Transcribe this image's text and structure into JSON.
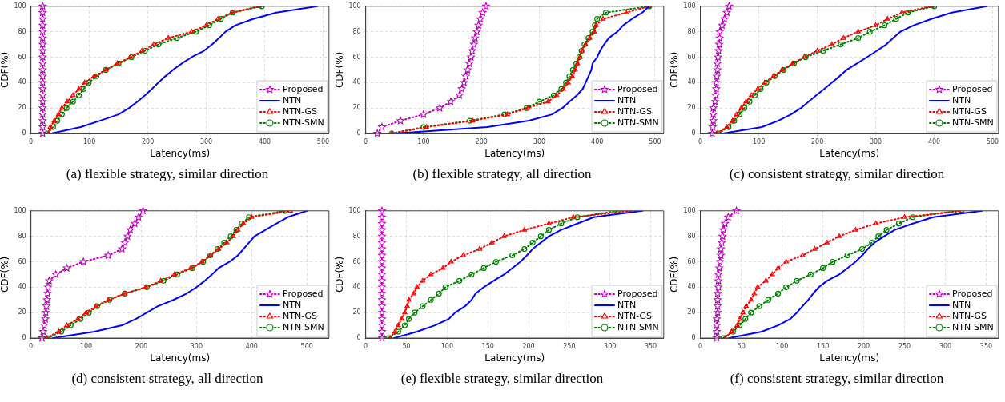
{
  "chart_data": [
    {
      "type": "line",
      "title": "(a) flexible strategy, similar direction",
      "xlabel": "Latency(ms)",
      "ylabel": "CDF(%)",
      "xlim": [
        0,
        510
      ],
      "xticks": [
        0,
        100,
        200,
        300,
        400,
        500
      ],
      "ylim": [
        0,
        100
      ],
      "yticks": [
        0,
        20,
        40,
        60,
        80,
        100
      ],
      "grid": true,
      "legend": "bottom right",
      "series": [
        {
          "name": "Proposed",
          "color": "#bf00bf",
          "marker": "star",
          "line_style": "dotted",
          "x": [
            20,
            20,
            20,
            20,
            20,
            20,
            20,
            20,
            20,
            20,
            20,
            20,
            20,
            20,
            20,
            20,
            20,
            20,
            20,
            20,
            20
          ],
          "values": [
            0,
            5,
            10,
            15,
            20,
            25,
            30,
            35,
            40,
            45,
            50,
            55,
            60,
            65,
            70,
            75,
            80,
            85,
            90,
            95,
            100
          ]
        },
        {
          "name": "NTN",
          "color": "#0000ff",
          "marker": "none",
          "line_style": "solid",
          "x": [
            35,
            85,
            118,
            150,
            168,
            182,
            195,
            207,
            218,
            230,
            243,
            258,
            275,
            296,
            310,
            322,
            333,
            350,
            380,
            420,
            490
          ],
          "values": [
            0,
            5,
            10,
            15,
            20,
            25,
            30,
            35,
            40,
            45,
            50,
            55,
            60,
            65,
            70,
            75,
            80,
            85,
            90,
            95,
            100
          ]
        },
        {
          "name": "NTN-GS",
          "color": "#ff0000",
          "marker": "triangle",
          "line_style": "dotted",
          "x": [
            30,
            33,
            40,
            47,
            53,
            62,
            72,
            82,
            92,
            108,
            128,
            148,
            170,
            190,
            210,
            235,
            275,
            300,
            320,
            345,
            390
          ],
          "values": [
            0,
            5,
            10,
            15,
            20,
            25,
            30,
            35,
            40,
            45,
            50,
            55,
            60,
            65,
            70,
            75,
            80,
            85,
            90,
            95,
            100
          ]
        },
        {
          "name": "NTN-SMN",
          "color": "#008000",
          "marker": "circle",
          "line_style": "dotted",
          "x": [
            28,
            38,
            45,
            53,
            61,
            72,
            82,
            90,
            99,
            112,
            128,
            150,
            172,
            195,
            218,
            250,
            282,
            305,
            325,
            345,
            395
          ],
          "values": [
            0,
            5,
            10,
            15,
            20,
            25,
            30,
            35,
            40,
            45,
            50,
            55,
            60,
            65,
            70,
            75,
            80,
            85,
            90,
            95,
            100
          ]
        }
      ]
    },
    {
      "type": "line",
      "title": "(b) flexible strategy, all direction",
      "xlabel": "Latency(ms)",
      "ylabel": "CDF(%)",
      "xlim": [
        0,
        515
      ],
      "xticks": [
        0,
        100,
        200,
        300,
        400,
        500
      ],
      "ylim": [
        0,
        100
      ],
      "yticks": [
        0,
        20,
        40,
        60,
        80,
        100
      ],
      "grid": true,
      "legend": "bottom right",
      "series": [
        {
          "name": "Proposed",
          "color": "#bf00bf",
          "marker": "star",
          "line_style": "dotted",
          "x": [
            20,
            28,
            60,
            100,
            128,
            147,
            162,
            166,
            170,
            173,
            176,
            179,
            182,
            184,
            187,
            189,
            192,
            195,
            198,
            202,
            208
          ],
          "values": [
            0,
            5,
            10,
            15,
            20,
            25,
            30,
            35,
            40,
            45,
            50,
            55,
            60,
            65,
            70,
            75,
            80,
            85,
            90,
            95,
            100
          ]
        },
        {
          "name": "NTN",
          "color": "#0000ff",
          "marker": "none",
          "line_style": "solid",
          "x": [
            50,
            210,
            282,
            322,
            340,
            352,
            365,
            375,
            380,
            385,
            390,
            392,
            400,
            405,
            412,
            420,
            435,
            445,
            460,
            478,
            490
          ],
          "values": [
            0,
            5,
            10,
            15,
            20,
            25,
            30,
            35,
            40,
            45,
            50,
            55,
            60,
            65,
            70,
            75,
            80,
            85,
            90,
            95,
            100
          ]
        },
        {
          "name": "NTN-GS",
          "color": "#ff0000",
          "marker": "triangle",
          "line_style": "dotted",
          "x": [
            45,
            105,
            185,
            245,
            280,
            315,
            330,
            342,
            350,
            357,
            362,
            366,
            370,
            374,
            380,
            387,
            395,
            398,
            410,
            450,
            490
          ],
          "values": [
            0,
            5,
            10,
            15,
            20,
            25,
            30,
            35,
            40,
            45,
            50,
            55,
            60,
            65,
            70,
            75,
            80,
            85,
            90,
            95,
            100
          ]
        },
        {
          "name": "NTN-SMN",
          "color": "#008000",
          "marker": "circle",
          "line_style": "dotted",
          "x": [
            45,
            100,
            180,
            240,
            278,
            300,
            325,
            338,
            346,
            352,
            358,
            364,
            369,
            373,
            378,
            385,
            392,
            396,
            400,
            415,
            490
          ],
          "values": [
            0,
            5,
            10,
            15,
            20,
            25,
            30,
            35,
            40,
            45,
            50,
            55,
            60,
            65,
            70,
            75,
            80,
            85,
            90,
            95,
            100
          ]
        }
      ]
    },
    {
      "type": "line",
      "title": "(c) consistent strategy, similar direction",
      "xlabel": "Latency(ms)",
      "ylabel": "CDF(%)",
      "xlim": [
        0,
        510
      ],
      "xticks": [
        0,
        100,
        200,
        300,
        400,
        500
      ],
      "ylim": [
        0,
        100
      ],
      "yticks": [
        0,
        20,
        40,
        60,
        80,
        100
      ],
      "grid": true,
      "legend": "bottom right",
      "series": [
        {
          "name": "Proposed",
          "color": "#bf00bf",
          "marker": "star",
          "line_style": "dotted",
          "x": [
            20,
            21,
            22,
            22,
            22,
            25,
            26,
            27,
            27,
            28,
            29,
            29,
            30,
            31,
            32,
            33,
            33,
            37,
            41,
            45,
            49
          ],
          "values": [
            0,
            5,
            10,
            15,
            20,
            25,
            30,
            35,
            40,
            45,
            50,
            55,
            60,
            65,
            70,
            75,
            80,
            85,
            90,
            95,
            100
          ]
        },
        {
          "name": "NTN",
          "color": "#0000ff",
          "marker": "none",
          "line_style": "solid",
          "x": [
            38,
            105,
            133,
            155,
            172,
            185,
            198,
            212,
            225,
            238,
            250,
            268,
            285,
            302,
            318,
            330,
            342,
            365,
            395,
            430,
            490
          ],
          "values": [
            0,
            5,
            10,
            15,
            20,
            25,
            30,
            35,
            40,
            45,
            50,
            55,
            60,
            65,
            70,
            75,
            80,
            85,
            90,
            95,
            100
          ]
        },
        {
          "name": "NTN-GS",
          "color": "#ff0000",
          "marker": "triangle",
          "line_style": "dotted",
          "x": [
            28,
            45,
            55,
            62,
            70,
            78,
            87,
            98,
            110,
            125,
            140,
            158,
            178,
            200,
            225,
            245,
            270,
            300,
            320,
            345,
            395
          ],
          "values": [
            0,
            5,
            10,
            15,
            20,
            25,
            30,
            35,
            40,
            45,
            50,
            55,
            60,
            65,
            70,
            75,
            80,
            85,
            90,
            95,
            100
          ]
        },
        {
          "name": "NTN-SMN",
          "color": "#008000",
          "marker": "circle",
          "line_style": "dotted",
          "x": [
            30,
            48,
            58,
            67,
            75,
            84,
            93,
            103,
            113,
            127,
            142,
            160,
            180,
            210,
            240,
            270,
            290,
            315,
            335,
            355,
            400
          ],
          "values": [
            0,
            5,
            10,
            15,
            20,
            25,
            30,
            35,
            40,
            45,
            50,
            55,
            60,
            65,
            70,
            75,
            80,
            85,
            90,
            95,
            100
          ]
        }
      ]
    },
    {
      "type": "line",
      "title": "(d) consistent strategy, all direction",
      "xlabel": "Latency(ms)",
      "ylabel": "CDF(%)",
      "xlim": [
        0,
        540
      ],
      "xticks": [
        0,
        100,
        200,
        300,
        400,
        500
      ],
      "ylim": [
        0,
        100
      ],
      "yticks": [
        0,
        20,
        40,
        60,
        80,
        100
      ],
      "grid": true,
      "legend": "bottom right",
      "series": [
        {
          "name": "Proposed",
          "color": "#bf00bf",
          "marker": "star",
          "line_style": "dotted",
          "x": [
            20,
            22,
            24,
            26,
            27,
            28,
            29,
            30,
            31,
            33,
            45,
            65,
            95,
            140,
            165,
            170,
            175,
            180,
            188,
            195,
            203
          ],
          "values": [
            0,
            5,
            10,
            15,
            20,
            25,
            30,
            35,
            40,
            45,
            50,
            55,
            60,
            65,
            70,
            75,
            80,
            85,
            90,
            95,
            100
          ]
        },
        {
          "name": "NTN",
          "color": "#0000ff",
          "marker": "none",
          "line_style": "solid",
          "x": [
            40,
            115,
            165,
            190,
            210,
            230,
            258,
            282,
            300,
            315,
            328,
            340,
            360,
            375,
            385,
            395,
            405,
            425,
            445,
            465,
            500
          ],
          "values": [
            0,
            5,
            10,
            15,
            20,
            25,
            30,
            35,
            40,
            45,
            50,
            55,
            60,
            65,
            70,
            75,
            80,
            85,
            90,
            95,
            100
          ]
        },
        {
          "name": "NTN-GS",
          "color": "#ff0000",
          "marker": "triangle",
          "line_style": "dotted",
          "x": [
            28,
            50,
            65,
            85,
            100,
            118,
            140,
            170,
            208,
            235,
            260,
            290,
            310,
            325,
            340,
            355,
            367,
            375,
            385,
            400,
            470
          ],
          "values": [
            0,
            5,
            10,
            15,
            20,
            25,
            30,
            35,
            40,
            45,
            50,
            55,
            60,
            65,
            70,
            75,
            80,
            85,
            90,
            95,
            100
          ]
        },
        {
          "name": "NTN-SMN",
          "color": "#008000",
          "marker": "circle",
          "line_style": "dotted",
          "x": [
            30,
            55,
            72,
            90,
            105,
            120,
            142,
            170,
            210,
            240,
            265,
            292,
            312,
            325,
            338,
            350,
            362,
            372,
            382,
            395,
            460
          ],
          "values": [
            0,
            5,
            10,
            15,
            20,
            25,
            30,
            35,
            40,
            45,
            50,
            55,
            60,
            65,
            70,
            75,
            80,
            85,
            90,
            95,
            100
          ]
        }
      ]
    },
    {
      "type": "line",
      "title": "(e) flexible strategy, similar direction",
      "xlabel": "Latency(ms)",
      "ylabel": "CDF(%)",
      "xlim": [
        0,
        366
      ],
      "xticks": [
        0,
        50,
        100,
        150,
        200,
        250,
        300,
        350
      ],
      "ylim": [
        0,
        100
      ],
      "yticks": [
        0,
        20,
        40,
        60,
        80,
        100
      ],
      "grid": true,
      "legend": "bottom right",
      "series": [
        {
          "name": "Proposed",
          "color": "#bf00bf",
          "marker": "star",
          "line_style": "dotted",
          "x": [
            20,
            20,
            20,
            20,
            20,
            20,
            20,
            20,
            20,
            20,
            20,
            20,
            20,
            20,
            20,
            20,
            20,
            20,
            20,
            20,
            20
          ],
          "values": [
            0,
            5,
            10,
            15,
            20,
            25,
            30,
            35,
            40,
            45,
            50,
            55,
            60,
            65,
            70,
            75,
            80,
            85,
            90,
            95,
            100
          ]
        },
        {
          "name": "NTN",
          "color": "#0000ff",
          "marker": "none",
          "line_style": "solid",
          "x": [
            35,
            63,
            85,
            102,
            110,
            122,
            130,
            135,
            145,
            157,
            170,
            180,
            190,
            198,
            205,
            215,
            225,
            240,
            260,
            280,
            340
          ],
          "values": [
            0,
            5,
            10,
            15,
            20,
            25,
            30,
            35,
            40,
            45,
            50,
            55,
            60,
            65,
            70,
            75,
            80,
            85,
            90,
            95,
            100
          ]
        },
        {
          "name": "NTN-GS",
          "color": "#ff0000",
          "marker": "triangle",
          "line_style": "dotted",
          "x": [
            30,
            36,
            40,
            44,
            48,
            51,
            53,
            59,
            63,
            70,
            80,
            95,
            105,
            120,
            140,
            155,
            170,
            195,
            225,
            255,
            325
          ],
          "values": [
            0,
            5,
            10,
            15,
            20,
            25,
            30,
            35,
            40,
            45,
            50,
            55,
            60,
            65,
            70,
            75,
            80,
            85,
            90,
            95,
            100
          ]
        },
        {
          "name": "NTN-SMN",
          "color": "#008000",
          "marker": "circle",
          "line_style": "dotted",
          "x": [
            28,
            40,
            48,
            53,
            60,
            70,
            80,
            90,
            98,
            115,
            130,
            145,
            160,
            180,
            195,
            205,
            215,
            225,
            240,
            260,
            310
          ],
          "values": [
            0,
            5,
            10,
            15,
            20,
            25,
            30,
            35,
            40,
            45,
            50,
            55,
            60,
            65,
            70,
            75,
            80,
            85,
            90,
            95,
            100
          ]
        }
      ]
    },
    {
      "type": "line",
      "title": "(f) consistent strategy, similar direction",
      "xlabel": "Latency(ms)",
      "ylabel": "CDF(%)",
      "xlim": [
        0,
        365
      ],
      "xticks": [
        0,
        50,
        100,
        150,
        200,
        250,
        300,
        350
      ],
      "ylim": [
        0,
        100
      ],
      "yticks": [
        0,
        20,
        40,
        60,
        80,
        100
      ],
      "grid": true,
      "legend": "bottom right",
      "series": [
        {
          "name": "Proposed",
          "color": "#bf00bf",
          "marker": "star",
          "line_style": "dotted",
          "x": [
            20,
            20,
            20,
            20,
            21,
            21,
            21,
            21,
            22,
            22,
            22,
            23,
            24,
            25,
            25,
            26,
            27,
            28,
            30,
            34,
            44
          ],
          "values": [
            0,
            5,
            10,
            15,
            20,
            25,
            30,
            35,
            40,
            45,
            50,
            55,
            60,
            65,
            70,
            75,
            80,
            85,
            90,
            95,
            100
          ]
        },
        {
          "name": "NTN",
          "color": "#0000ff",
          "marker": "none",
          "line_style": "solid",
          "x": [
            35,
            75,
            95,
            110,
            118,
            125,
            132,
            138,
            145,
            155,
            170,
            180,
            190,
            198,
            205,
            213,
            225,
            238,
            260,
            285,
            345
          ],
          "values": [
            0,
            5,
            10,
            15,
            20,
            25,
            30,
            35,
            40,
            45,
            50,
            55,
            60,
            65,
            70,
            75,
            80,
            85,
            90,
            95,
            100
          ]
        },
        {
          "name": "NTN-GS",
          "color": "#ff0000",
          "marker": "triangle",
          "line_style": "dotted",
          "x": [
            30,
            38,
            45,
            48,
            52,
            56,
            62,
            66,
            70,
            80,
            88,
            95,
            105,
            125,
            140,
            155,
            170,
            190,
            215,
            250,
            320
          ],
          "values": [
            0,
            5,
            10,
            15,
            20,
            25,
            30,
            35,
            40,
            45,
            50,
            55,
            60,
            65,
            70,
            75,
            80,
            85,
            90,
            95,
            100
          ]
        },
        {
          "name": "NTN-SMN",
          "color": "#008000",
          "marker": "circle",
          "line_style": "dotted",
          "x": [
            28,
            40,
            48,
            55,
            62,
            72,
            83,
            95,
            105,
            118,
            135,
            150,
            162,
            180,
            198,
            210,
            218,
            228,
            243,
            260,
            315
          ],
          "values": [
            0,
            5,
            10,
            15,
            20,
            25,
            30,
            35,
            40,
            45,
            50,
            55,
            60,
            65,
            70,
            75,
            80,
            85,
            90,
            95,
            100
          ]
        }
      ]
    }
  ]
}
